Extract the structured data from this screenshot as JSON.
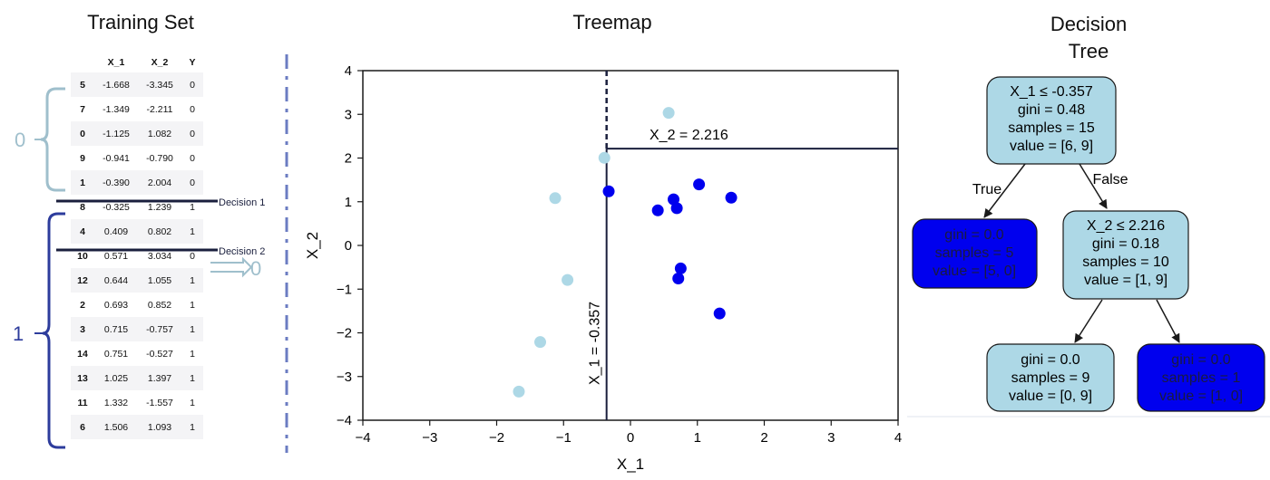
{
  "training_set": {
    "title": "Training Set",
    "columns": [
      "",
      "X_1",
      "X_2",
      "Y"
    ],
    "rows": [
      [
        "5",
        "-1.668",
        "-3.345",
        "0"
      ],
      [
        "7",
        "-1.349",
        "-2.211",
        "0"
      ],
      [
        "0",
        "-1.125",
        "1.082",
        "0"
      ],
      [
        "9",
        "-0.941",
        "-0.790",
        "0"
      ],
      [
        "1",
        "-0.390",
        "2.004",
        "0"
      ],
      [
        "8",
        "-0.325",
        "1.239",
        "1"
      ],
      [
        "4",
        "0.409",
        "0.802",
        "1"
      ],
      [
        "10",
        "0.571",
        "3.034",
        "0"
      ],
      [
        "12",
        "0.644",
        "1.055",
        "1"
      ],
      [
        "2",
        "0.693",
        "0.852",
        "1"
      ],
      [
        "3",
        "0.715",
        "-0.757",
        "1"
      ],
      [
        "14",
        "0.751",
        "-0.527",
        "1"
      ],
      [
        "13",
        "1.025",
        "1.397",
        "1"
      ],
      [
        "11",
        "1.332",
        "-1.557",
        "1"
      ],
      [
        "6",
        "1.506",
        "1.093",
        "1"
      ]
    ],
    "decision_1_label": "Decision 1",
    "decision_2_label": "Decision 2",
    "group_0_label": "0",
    "group_1_label": "1",
    "arrow_label": "0"
  },
  "treemap": {
    "title": "Treemap",
    "xlabel": "X_1",
    "ylabel": "X_2",
    "split1_label": "X_1 = -0.357",
    "split2_label": "X_2 = 2.216",
    "colors": {
      "class0": "#add8e6",
      "class1": "#0000ee"
    }
  },
  "chart_data": {
    "type": "scatter",
    "title": "Treemap",
    "xlabel": "X_1",
    "ylabel": "X_2",
    "xlim": [
      -4,
      4
    ],
    "ylim": [
      -4,
      4
    ],
    "x_ticks": [
      "−4",
      "−3",
      "−2",
      "−1",
      "0",
      "1",
      "2",
      "3",
      "4"
    ],
    "y_ticks": [
      "4",
      "3",
      "2",
      "1",
      "0",
      "−1",
      "−2",
      "−3",
      "−4"
    ],
    "points": [
      {
        "x": -1.668,
        "y": -3.345,
        "label": 0
      },
      {
        "x": -1.349,
        "y": -2.211,
        "label": 0
      },
      {
        "x": -1.125,
        "y": 1.082,
        "label": 0
      },
      {
        "x": -0.941,
        "y": -0.79,
        "label": 0
      },
      {
        "x": -0.39,
        "y": 2.004,
        "label": 0
      },
      {
        "x": -0.325,
        "y": 1.239,
        "label": 1
      },
      {
        "x": 0.409,
        "y": 0.802,
        "label": 1
      },
      {
        "x": 0.571,
        "y": 3.034,
        "label": 0
      },
      {
        "x": 0.644,
        "y": 1.055,
        "label": 1
      },
      {
        "x": 0.693,
        "y": 0.852,
        "label": 1
      },
      {
        "x": 0.715,
        "y": -0.757,
        "label": 1
      },
      {
        "x": 0.751,
        "y": -0.527,
        "label": 1
      },
      {
        "x": 1.025,
        "y": 1.397,
        "label": 1
      },
      {
        "x": 1.332,
        "y": -1.557,
        "label": 1
      },
      {
        "x": 1.506,
        "y": 1.093,
        "label": 1
      }
    ],
    "split_x": -0.357,
    "split_y": 2.216
  },
  "decision_tree": {
    "title_line1": "Decision",
    "title_line2": "Tree",
    "edge_true": "True",
    "edge_false": "False",
    "nodes": {
      "root": [
        "X_1 ≤ -0.357",
        "gini = 0.48",
        "samples = 15",
        "value = [6, 9]"
      ],
      "left": [
        "gini = 0.0",
        "samples = 5",
        "value = [5, 0]"
      ],
      "right": [
        "X_2 ≤ 2.216",
        "gini = 0.18",
        "samples = 10",
        "value = [1, 9]"
      ],
      "rl": [
        "gini = 0.0",
        "samples = 9",
        "value = [0, 9]"
      ],
      "rr": [
        "gini = 0.0",
        "samples = 1",
        "value = [1, 0]"
      ]
    },
    "colors": {
      "light": "#add8e6",
      "dark": "#0000ee"
    }
  }
}
